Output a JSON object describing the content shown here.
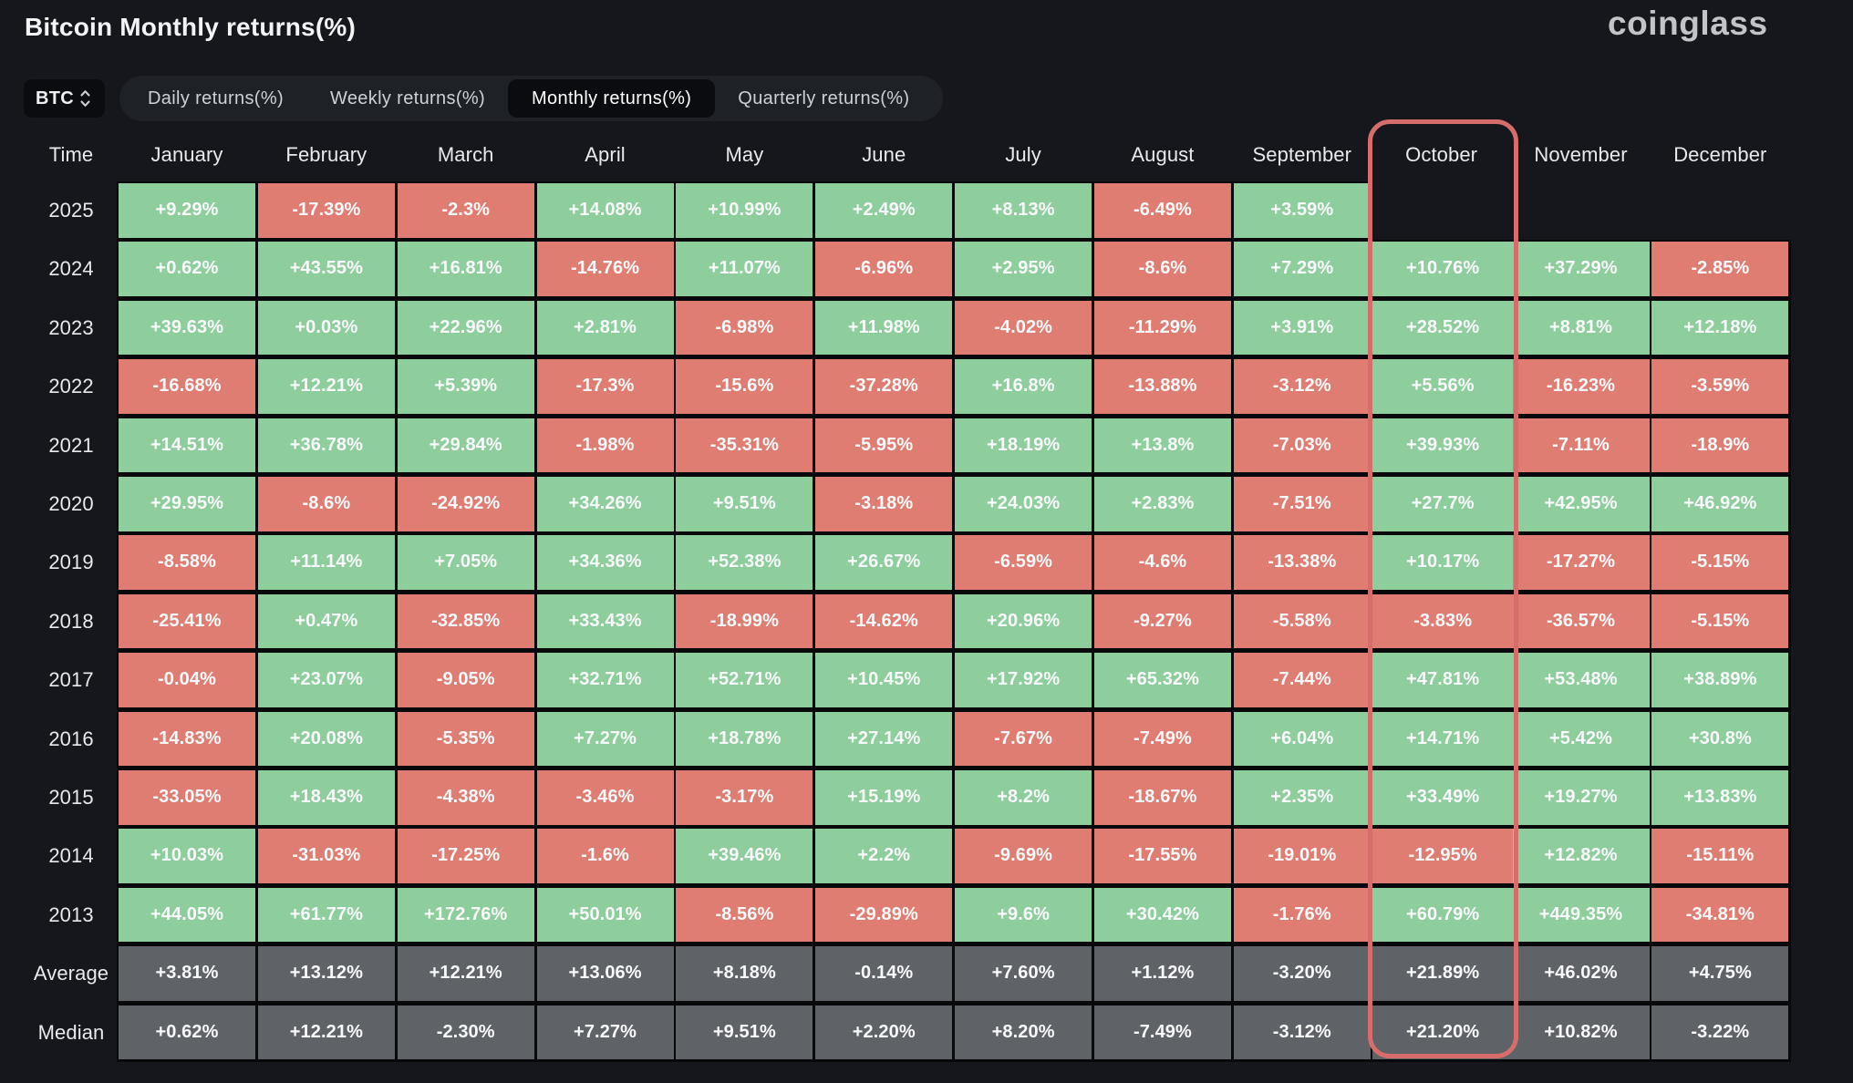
{
  "window": {
    "title": "Bitcoin Monthly returns(%)",
    "brand": "coinglass"
  },
  "toolbar": {
    "symbol_selector": {
      "value": "BTC",
      "icon": "up-down-chevrons"
    },
    "tabs": [
      {
        "label": "Daily returns(%)",
        "active": false
      },
      {
        "label": "Weekly returns(%)",
        "active": false
      },
      {
        "label": "Monthly returns(%)",
        "active": true
      },
      {
        "label": "Quarterly returns(%)",
        "active": false
      }
    ]
  },
  "chart_data": {
    "type": "heatmap",
    "title": "Bitcoin Monthly returns(%)",
    "time_header": "Time",
    "columns": [
      "January",
      "February",
      "March",
      "April",
      "May",
      "June",
      "July",
      "August",
      "September",
      "October",
      "November",
      "December"
    ],
    "highlighted_column": "October",
    "rows": [
      {
        "label": "2025",
        "kind": "year",
        "values": [
          "+9.29%",
          "-17.39%",
          "-2.3%",
          "+14.08%",
          "+10.99%",
          "+2.49%",
          "+8.13%",
          "-6.49%",
          "+3.59%",
          null,
          null,
          null
        ]
      },
      {
        "label": "2024",
        "kind": "year",
        "values": [
          "+0.62%",
          "+43.55%",
          "+16.81%",
          "-14.76%",
          "+11.07%",
          "-6.96%",
          "+2.95%",
          "-8.6%",
          "+7.29%",
          "+10.76%",
          "+37.29%",
          "-2.85%"
        ]
      },
      {
        "label": "2023",
        "kind": "year",
        "values": [
          "+39.63%",
          "+0.03%",
          "+22.96%",
          "+2.81%",
          "-6.98%",
          "+11.98%",
          "-4.02%",
          "-11.29%",
          "+3.91%",
          "+28.52%",
          "+8.81%",
          "+12.18%"
        ]
      },
      {
        "label": "2022",
        "kind": "year",
        "values": [
          "-16.68%",
          "+12.21%",
          "+5.39%",
          "-17.3%",
          "-15.6%",
          "-37.28%",
          "+16.8%",
          "-13.88%",
          "-3.12%",
          "+5.56%",
          "-16.23%",
          "-3.59%"
        ]
      },
      {
        "label": "2021",
        "kind": "year",
        "values": [
          "+14.51%",
          "+36.78%",
          "+29.84%",
          "-1.98%",
          "-35.31%",
          "-5.95%",
          "+18.19%",
          "+13.8%",
          "-7.03%",
          "+39.93%",
          "-7.11%",
          "-18.9%"
        ]
      },
      {
        "label": "2020",
        "kind": "year",
        "values": [
          "+29.95%",
          "-8.6%",
          "-24.92%",
          "+34.26%",
          "+9.51%",
          "-3.18%",
          "+24.03%",
          "+2.83%",
          "-7.51%",
          "+27.7%",
          "+42.95%",
          "+46.92%"
        ]
      },
      {
        "label": "2019",
        "kind": "year",
        "values": [
          "-8.58%",
          "+11.14%",
          "+7.05%",
          "+34.36%",
          "+52.38%",
          "+26.67%",
          "-6.59%",
          "-4.6%",
          "-13.38%",
          "+10.17%",
          "-17.27%",
          "-5.15%"
        ]
      },
      {
        "label": "2018",
        "kind": "year",
        "values": [
          "-25.41%",
          "+0.47%",
          "-32.85%",
          "+33.43%",
          "-18.99%",
          "-14.62%",
          "+20.96%",
          "-9.27%",
          "-5.58%",
          "-3.83%",
          "-36.57%",
          "-5.15%"
        ]
      },
      {
        "label": "2017",
        "kind": "year",
        "values": [
          "-0.04%",
          "+23.07%",
          "-9.05%",
          "+32.71%",
          "+52.71%",
          "+10.45%",
          "+17.92%",
          "+65.32%",
          "-7.44%",
          "+47.81%",
          "+53.48%",
          "+38.89%"
        ]
      },
      {
        "label": "2016",
        "kind": "year",
        "values": [
          "-14.83%",
          "+20.08%",
          "-5.35%",
          "+7.27%",
          "+18.78%",
          "+27.14%",
          "-7.67%",
          "-7.49%",
          "+6.04%",
          "+14.71%",
          "+5.42%",
          "+30.8%"
        ]
      },
      {
        "label": "2015",
        "kind": "year",
        "values": [
          "-33.05%",
          "+18.43%",
          "-4.38%",
          "-3.46%",
          "-3.17%",
          "+15.19%",
          "+8.2%",
          "-18.67%",
          "+2.35%",
          "+33.49%",
          "+19.27%",
          "+13.83%"
        ]
      },
      {
        "label": "2014",
        "kind": "year",
        "values": [
          "+10.03%",
          "-31.03%",
          "-17.25%",
          "-1.6%",
          "+39.46%",
          "+2.2%",
          "-9.69%",
          "-17.55%",
          "-19.01%",
          "-12.95%",
          "+12.82%",
          "-15.11%"
        ]
      },
      {
        "label": "2013",
        "kind": "year",
        "values": [
          "+44.05%",
          "+61.77%",
          "+172.76%",
          "+50.01%",
          "-8.56%",
          "-29.89%",
          "+9.6%",
          "+30.42%",
          "-1.76%",
          "+60.79%",
          "+449.35%",
          "-34.81%"
        ]
      },
      {
        "label": "Average",
        "kind": "summary",
        "values": [
          "+3.81%",
          "+13.12%",
          "+12.21%",
          "+13.06%",
          "+8.18%",
          "-0.14%",
          "+7.60%",
          "+1.12%",
          "-3.20%",
          "+21.89%",
          "+46.02%",
          "+4.75%"
        ]
      },
      {
        "label": "Median",
        "kind": "summary",
        "values": [
          "+0.62%",
          "+12.21%",
          "-2.30%",
          "+7.27%",
          "+9.51%",
          "+2.20%",
          "+8.20%",
          "-7.49%",
          "-3.12%",
          "+21.20%",
          "+10.82%",
          "-3.22%"
        ]
      }
    ]
  },
  "colors": {
    "background": "#16171c",
    "cell_gap": "#08090b",
    "positive": "#8ecd9c",
    "negative": "#e07d72",
    "summary": "#5f6267",
    "highlight": "#d66d6b",
    "tab_bar": "#1e2126",
    "selected_tab": "#0b0c0f"
  }
}
